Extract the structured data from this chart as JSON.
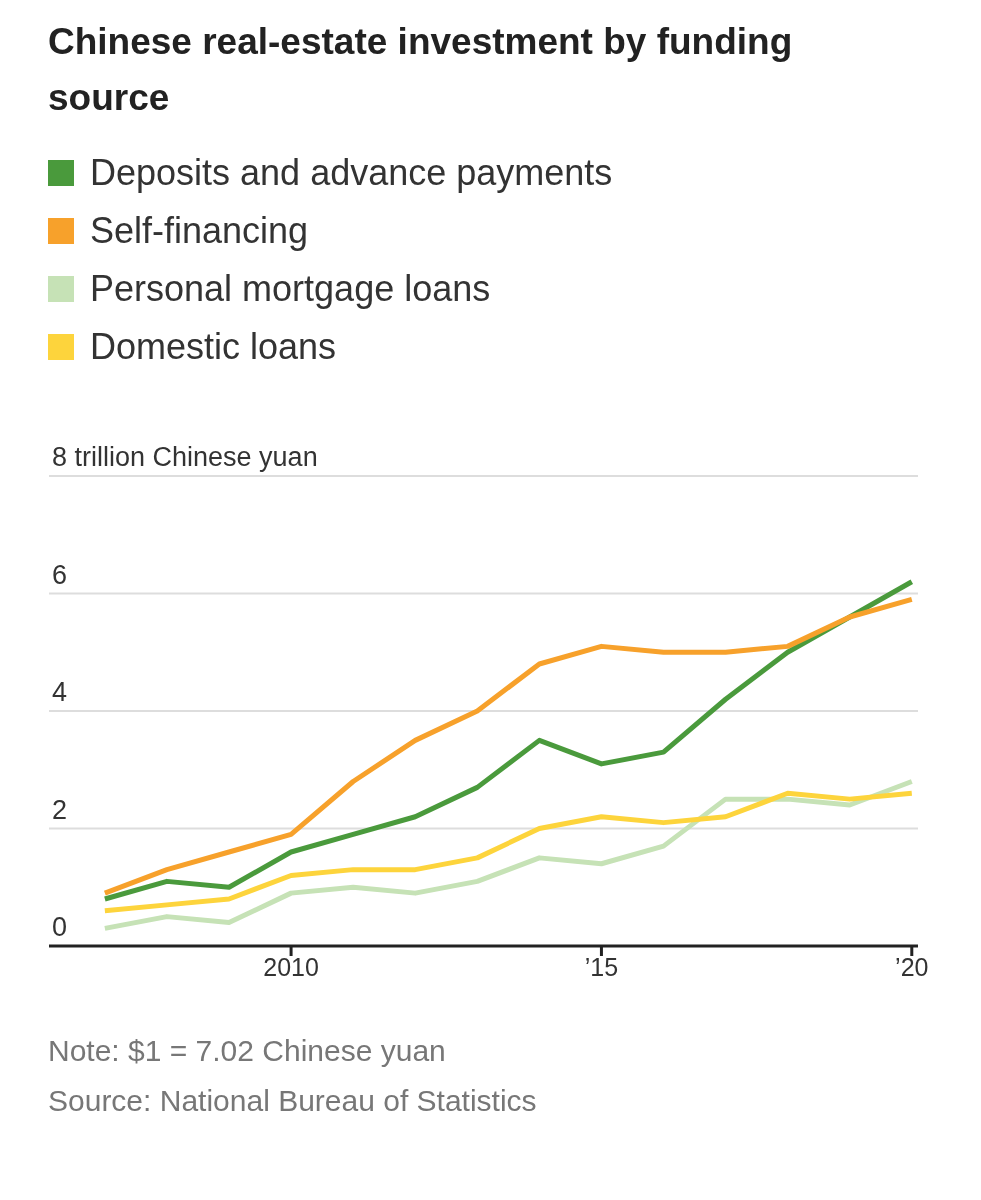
{
  "chart_data": {
    "type": "line",
    "title": "Chinese real-estate investment by funding source",
    "x": [
      2007,
      2008,
      2009,
      2010,
      2011,
      2012,
      2013,
      2014,
      2015,
      2016,
      2017,
      2018,
      2019,
      2020
    ],
    "series": [
      {
        "name": "Deposits and advance payments",
        "color": "#4a9a3c",
        "values": [
          0.8,
          1.1,
          1.0,
          1.6,
          1.9,
          2.2,
          2.7,
          3.5,
          3.1,
          3.3,
          4.2,
          5.0,
          5.6,
          6.2
        ]
      },
      {
        "name": "Self-financing",
        "color": "#f7a12b",
        "values": [
          0.9,
          1.3,
          1.6,
          1.9,
          2.8,
          3.5,
          4.0,
          4.8,
          5.1,
          5.0,
          5.0,
          5.1,
          5.6,
          5.9
        ]
      },
      {
        "name": "Personal mortgage loans",
        "color": "#c6e2b6",
        "values": [
          0.3,
          0.5,
          0.4,
          0.9,
          1.0,
          0.9,
          1.1,
          1.5,
          1.4,
          1.7,
          2.5,
          2.5,
          2.4,
          2.8
        ]
      },
      {
        "name": "Domestic loans",
        "color": "#fdd43c",
        "values": [
          0.6,
          0.7,
          0.8,
          1.2,
          1.3,
          1.3,
          1.5,
          2.0,
          2.2,
          2.1,
          2.2,
          2.6,
          2.5,
          2.6
        ]
      }
    ],
    "xlim": [
      2006.1,
      2020.1
    ],
    "xticks": [
      {
        "value": 2010,
        "label": "2010"
      },
      {
        "value": 2015,
        "label": "’15"
      },
      {
        "value": 2020,
        "label": "’20"
      }
    ],
    "ylim": [
      0,
      8
    ],
    "yticks": [
      0,
      2,
      4,
      6,
      {
        "value": 8,
        "label": "8 trillion Chinese yuan"
      }
    ],
    "grid": "y",
    "legend": "top",
    "marker": "none",
    "line_style": "solid",
    "annotations": [
      "Note: $1 = 7.02 Chinese yuan",
      "Source: National Bureau of Statistics"
    ]
  }
}
